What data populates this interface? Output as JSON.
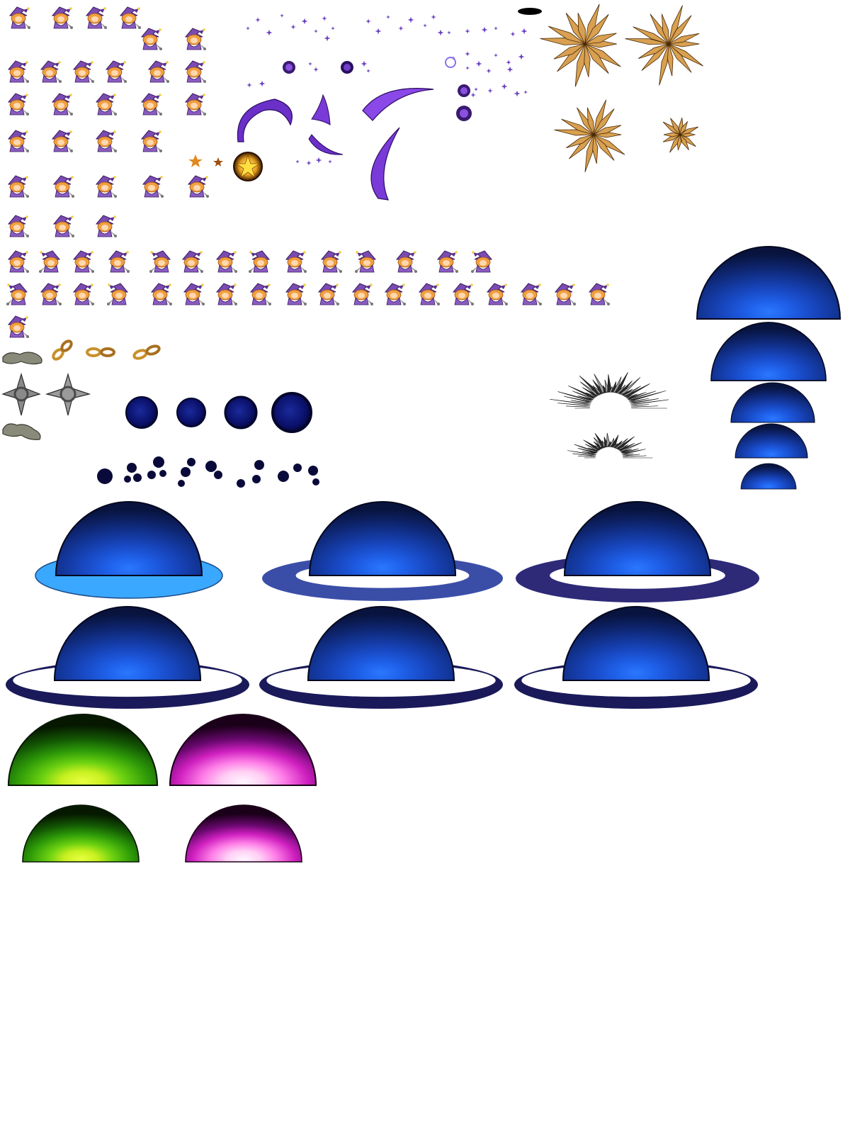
{
  "sheet": {
    "type": "sprite-sheet",
    "background": "#ffffff",
    "character": {
      "name": "witch-with-chain-flail",
      "palette": {
        "hat": "#7a4bb0",
        "hat_shadow": "#4a2a78",
        "hair": "#f0a040",
        "hair_shadow": "#c06020",
        "skin": "#ffd8b0",
        "robe": "#8a5cc0",
        "flail": "#8a8a8a"
      },
      "rows": [
        {
          "name": "idle-row-1",
          "frames": 4
        },
        {
          "name": "idle-row-1b",
          "frames": 2
        },
        {
          "name": "walk-row-2",
          "frames": 6
        },
        {
          "name": "attack-row-3",
          "frames": 5
        },
        {
          "name": "cast-row-4",
          "frames": 4
        },
        {
          "name": "swing-row-5",
          "frames": 5
        },
        {
          "name": "run-row-6",
          "frames": 3
        },
        {
          "name": "action-row-7",
          "frames": 14
        },
        {
          "name": "action-row-8",
          "frames": 18
        },
        {
          "name": "extra-row-9",
          "frames": 1
        }
      ]
    },
    "props": {
      "chain_links": 4,
      "spiked_balls": 2,
      "rock_clubs": 2,
      "dark_orbs": 4,
      "dark_blobs": 9
    },
    "effects": {
      "sparkle_color": "#6a40c0",
      "slash_color": "#7a3ad8",
      "star_burst_color": "#f0c030",
      "spike_burst_color": "#c88a30",
      "shadow_burst_color": "#404040"
    },
    "domes": {
      "blue": {
        "outer": "#0a1a4a",
        "inner": "#1e66ff"
      },
      "blue_stack_count": 5,
      "ringed_variants": [
        {
          "ring": "#3aa8ff",
          "style": "filled"
        },
        {
          "ring": "#3a4ea8",
          "style": "band"
        },
        {
          "ring": "#2e2a78",
          "style": "band"
        },
        {
          "ring": "#1a1a5a",
          "style": "thin"
        },
        {
          "ring": "#1a1a5a",
          "style": "thin"
        },
        {
          "ring": "#1a1a5a",
          "style": "thin"
        }
      ],
      "green": {
        "outer": "#0a1a00",
        "inner": "#e8ff30"
      },
      "magenta": {
        "outer": "#1a0010",
        "inner": "#fff0ff"
      }
    }
  }
}
